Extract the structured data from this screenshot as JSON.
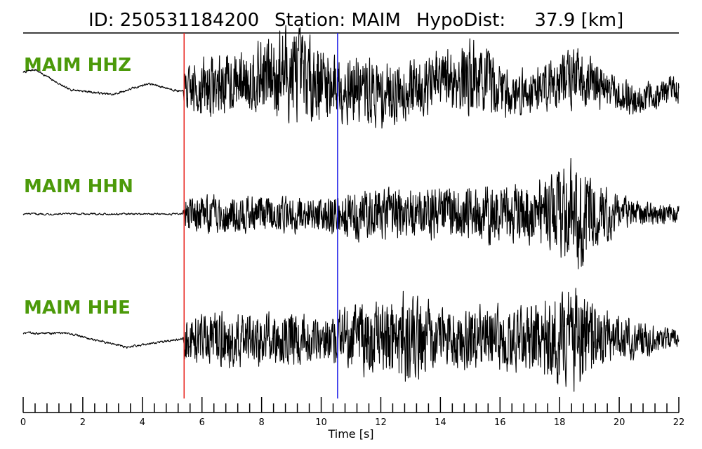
{
  "title": {
    "id_text": "ID: 250531184200",
    "station_text": "Station: MAIM",
    "dist_text": "HypoDist:     37.9 [km]"
  },
  "chart_data": {
    "type": "line",
    "title": "ID: 250531184200   Station: MAIM   HypoDist:     37.9 [km]",
    "xlabel": "Time [s]",
    "ylabel": "",
    "xlim": [
      0,
      22
    ],
    "x_ticks": [
      0,
      2,
      4,
      6,
      8,
      10,
      12,
      14,
      16,
      18,
      20,
      22
    ],
    "x_tick_labels": [
      "0",
      "2",
      "4",
      "6",
      "8",
      "10",
      "12",
      "14",
      "16",
      "18",
      "20",
      "22"
    ],
    "minor_tick_step": 0.4,
    "grid": false,
    "picks": [
      {
        "phase": "P",
        "time": 5.4,
        "color": "#e8201a"
      },
      {
        "phase": "S",
        "time": 10.55,
        "color": "#1a1ae8"
      }
    ],
    "trace_color": "#000000",
    "label_color": "#4c9a0a",
    "series": [
      {
        "name": "MAIM HHZ",
        "envelope": [
          [
            0,
            0.05
          ],
          [
            5.35,
            0.05
          ],
          [
            5.4,
            0.35
          ],
          [
            6.0,
            0.55
          ],
          [
            7.5,
            0.5
          ],
          [
            8.8,
            0.9
          ],
          [
            10.5,
            0.6
          ],
          [
            12.0,
            0.6
          ],
          [
            13.5,
            0.5
          ],
          [
            15.0,
            0.7
          ],
          [
            16.5,
            0.4
          ],
          [
            18.5,
            0.55
          ],
          [
            20.0,
            0.3
          ],
          [
            22.0,
            0.25
          ]
        ],
        "baseline": [
          [
            0,
            0.3
          ],
          [
            0.4,
            0.35
          ],
          [
            1.5,
            0.0
          ],
          [
            3.0,
            -0.1
          ],
          [
            4.2,
            0.1
          ],
          [
            5.35,
            -0.05
          ],
          [
            8.8,
            0.3
          ],
          [
            12.0,
            -0.1
          ],
          [
            15.0,
            0.25
          ],
          [
            16.5,
            -0.1
          ],
          [
            18.5,
            0.25
          ],
          [
            20.5,
            -0.2
          ],
          [
            22.0,
            0.0
          ]
        ]
      },
      {
        "name": "MAIM HHN",
        "envelope": [
          [
            0,
            0.04
          ],
          [
            5.35,
            0.04
          ],
          [
            5.4,
            0.3
          ],
          [
            7.0,
            0.35
          ],
          [
            10.0,
            0.3
          ],
          [
            11.0,
            0.45
          ],
          [
            14.0,
            0.45
          ],
          [
            17.0,
            0.55
          ],
          [
            18.6,
            1.0
          ],
          [
            19.0,
            0.7
          ],
          [
            20.0,
            0.3
          ],
          [
            22.0,
            0.15
          ]
        ],
        "baseline": [
          [
            0,
            0.0
          ],
          [
            22.0,
            0.0
          ]
        ]
      },
      {
        "name": "MAIM HHE",
        "envelope": [
          [
            0,
            0.05
          ],
          [
            5.35,
            0.05
          ],
          [
            5.4,
            0.4
          ],
          [
            7.0,
            0.5
          ],
          [
            10.0,
            0.4
          ],
          [
            12.8,
            0.85
          ],
          [
            14.0,
            0.55
          ],
          [
            17.0,
            0.6
          ],
          [
            18.6,
            0.95
          ],
          [
            19.5,
            0.5
          ],
          [
            21.0,
            0.3
          ],
          [
            22.0,
            0.15
          ]
        ],
        "baseline": [
          [
            0,
            0.1
          ],
          [
            1.5,
            0.1
          ],
          [
            3.5,
            -0.15
          ],
          [
            5.35,
            0.0
          ],
          [
            22.0,
            0.0
          ]
        ]
      }
    ]
  }
}
